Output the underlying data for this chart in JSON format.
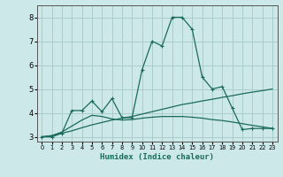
{
  "title": "",
  "xlabel": "Humidex (Indice chaleur)",
  "bg_color": "#cce8e8",
  "grid_color": "#aacccc",
  "line_color": "#1a6b5a",
  "xlim": [
    -0.5,
    23.5
  ],
  "ylim": [
    2.8,
    8.5
  ],
  "xticks": [
    0,
    1,
    2,
    3,
    4,
    5,
    6,
    7,
    8,
    9,
    10,
    11,
    12,
    13,
    14,
    15,
    16,
    17,
    18,
    19,
    20,
    21,
    22,
    23
  ],
  "yticks": [
    3,
    4,
    5,
    6,
    7,
    8
  ],
  "jagged_x": [
    0,
    1,
    2,
    3,
    4,
    5,
    6,
    7,
    8,
    9,
    10,
    11,
    12,
    13,
    14,
    15,
    16,
    17,
    18,
    19,
    20,
    21,
    22,
    23
  ],
  "jagged_y": [
    3.0,
    3.0,
    3.15,
    4.1,
    4.1,
    4.5,
    4.05,
    4.6,
    3.8,
    3.8,
    5.8,
    7.0,
    6.8,
    8.0,
    8.0,
    7.5,
    5.5,
    5.0,
    5.1,
    4.2,
    3.3,
    3.35,
    3.35,
    3.35
  ],
  "smooth_x": [
    0,
    1,
    2,
    3,
    4,
    5,
    6,
    7,
    8,
    9,
    10,
    11,
    12,
    13,
    14,
    15,
    16,
    17,
    18,
    19,
    20,
    21,
    22,
    23
  ],
  "smooth_y": [
    3.0,
    3.05,
    3.2,
    3.45,
    3.7,
    3.9,
    3.85,
    3.75,
    3.7,
    3.72,
    3.78,
    3.82,
    3.85,
    3.85,
    3.85,
    3.82,
    3.78,
    3.72,
    3.68,
    3.62,
    3.55,
    3.48,
    3.42,
    3.35
  ],
  "linear_x": [
    0,
    1,
    2,
    3,
    4,
    5,
    6,
    7,
    8,
    9,
    10,
    11,
    12,
    13,
    14,
    15,
    16,
    17,
    18,
    19,
    20,
    21,
    22,
    23
  ],
  "linear_y": [
    3.0,
    3.05,
    3.15,
    3.25,
    3.38,
    3.5,
    3.6,
    3.7,
    3.78,
    3.85,
    3.95,
    4.05,
    4.15,
    4.25,
    4.35,
    4.42,
    4.5,
    4.57,
    4.65,
    4.72,
    4.8,
    4.87,
    4.93,
    5.0
  ]
}
